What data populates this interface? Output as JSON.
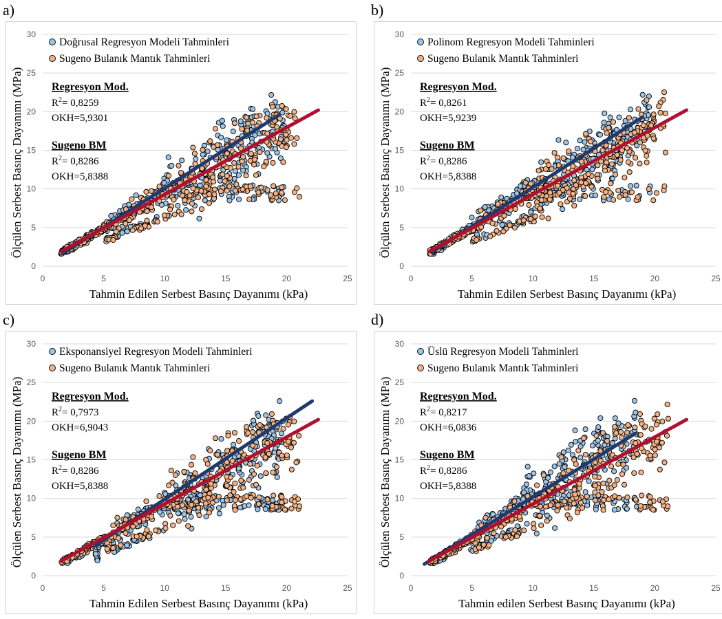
{
  "colors": {
    "regression_points": "#9dc3e6",
    "sugeno_points": "#f4b183",
    "regression_line": "#1f3a6e",
    "sugeno_line": "#b0102f",
    "gridline": "#d9d9d9"
  },
  "chart_data": [
    {
      "panel_label": "a)",
      "type": "scatter",
      "xlabel": "Tahmin Edilen Serbest Basınç Dayanımı (kPa)",
      "ylabel": "Ölçülen Serbest Basınç Dayanımı (MPa)",
      "xlim": [
        0,
        25
      ],
      "ylim": [
        0,
        30
      ],
      "xticks": [
        "0",
        "5",
        "10",
        "15",
        "20",
        "25"
      ],
      "yticks": [
        "0",
        "5",
        "10",
        "15",
        "20",
        "25",
        "30"
      ],
      "grid": "horizontal",
      "legend_position": "top-left",
      "series": [
        {
          "name": "Doğrusal Regresyon Modeli Tahminleri",
          "color": "#9dc3e6",
          "fit_line": {
            "x": [
              1.7,
              19.4
            ],
            "y": [
              1.7,
              19.6
            ],
            "color": "#1f3a6e"
          }
        },
        {
          "name": "Sugeno Bulanık Mantık Tahminleri",
          "color": "#f4b183",
          "fit_line": {
            "x": [
              1.5,
              22.6
            ],
            "y": [
              1.9,
              20.2
            ],
            "color": "#b0102f"
          }
        }
      ],
      "annotations": {
        "reg_title": "Regresyon Mod.",
        "reg_r2_prefix": "R",
        "reg_r2_sup": "2",
        "reg_r2_value": "= 0,8259",
        "reg_okh": "OKH=5,9301",
        "bm_title": "Sugeno BM",
        "bm_r2_prefix": "R",
        "bm_r2_sup": "2",
        "bm_r2_value": "= 0,8286",
        "bm_okh": "OKH=5,8388"
      },
      "reg_shape": "linear"
    },
    {
      "panel_label": "b)",
      "type": "scatter",
      "xlabel": "Tahmin Edilen Serbest Basınç Dayanımı (kPa)",
      "ylabel": "Ölçülen Serbest Basınç Dayanımı (MPa)",
      "xlim": [
        0,
        25
      ],
      "ylim": [
        0,
        30
      ],
      "xticks": [
        "0",
        "5",
        "10",
        "15",
        "20",
        "25"
      ],
      "yticks": [
        "0",
        "5",
        "10",
        "15",
        "20",
        "25",
        "30"
      ],
      "grid": "horizontal",
      "legend_position": "top-left",
      "series": [
        {
          "name": "Polinom Regresyon Modeli Tahminleri",
          "color": "#9dc3e6",
          "fit_line": {
            "x": [
              1.7,
              19.0
            ],
            "y": [
              1.8,
              19.3
            ],
            "color": "#1f3a6e"
          }
        },
        {
          "name": "Sugeno Bulanık Mantık Tahminleri",
          "color": "#f4b183",
          "fit_line": {
            "x": [
              1.5,
              22.6
            ],
            "y": [
              1.9,
              20.2
            ],
            "color": "#b0102f"
          }
        }
      ],
      "annotations": {
        "reg_title": "Regresyon Mod.",
        "reg_r2_prefix": "R",
        "reg_r2_sup": "2",
        "reg_r2_value": "= 0,8261",
        "reg_okh": "OKH=5,9239",
        "bm_title": "Sugeno BM",
        "bm_r2_prefix": "R",
        "bm_r2_sup": "2",
        "bm_r2_value": "= 0,8286",
        "bm_okh": "OKH=5,8388"
      },
      "reg_shape": "polynomial"
    },
    {
      "panel_label": "c)",
      "type": "scatter",
      "xlabel": "Tahmin Edilen Serbest Basınç Dayanımı (kPa)",
      "ylabel": "Ölçülen Serbest Basınç Dayanımı (MPa)",
      "xlim": [
        0,
        25
      ],
      "ylim": [
        0,
        30
      ],
      "xticks": [
        "0",
        "5",
        "10",
        "15",
        "20",
        "25"
      ],
      "yticks": [
        "0",
        "5",
        "10",
        "15",
        "20",
        "25",
        "30"
      ],
      "grid": "horizontal",
      "legend_position": "top-left",
      "series": [
        {
          "name": "Eksponansiyel Regresyon Modeli Tahminleri",
          "color": "#9dc3e6",
          "fit_line": {
            "x": [
              4.3,
              22.1
            ],
            "y": [
              3.9,
              22.6
            ],
            "color": "#1f3a6e"
          }
        },
        {
          "name": "Sugeno Bulanık Mantık Tahminleri",
          "color": "#f4b183",
          "fit_line": {
            "x": [
              1.5,
              22.6
            ],
            "y": [
              1.9,
              20.2
            ],
            "color": "#b0102f"
          }
        }
      ],
      "annotations": {
        "reg_title": "Regresyon Mod.",
        "reg_r2_prefix": "R",
        "reg_r2_sup": "2",
        "reg_r2_value": "= 0,7973",
        "reg_okh": "OKH=6,9043",
        "bm_title": "Sugeno BM",
        "bm_r2_prefix": "R",
        "bm_r2_sup": "2",
        "bm_r2_value": "= 0,8286",
        "bm_okh": "OKH=5,8388"
      },
      "reg_shape": "exponential"
    },
    {
      "panel_label": "d)",
      "type": "scatter",
      "xlabel": "Tahmin edilen Serbest Basınç Dayanımı (kPa)",
      "ylabel": "Ölçülen Serbest Basınç Dayanımı (MPa)",
      "xlim": [
        0,
        25
      ],
      "ylim": [
        0,
        30
      ],
      "xticks": [
        "0",
        "5",
        "10",
        "15",
        "20",
        "25"
      ],
      "yticks": [
        "0",
        "5",
        "10",
        "15",
        "20",
        "25",
        "30"
      ],
      "grid": "horizontal",
      "legend_position": "top-left",
      "series": [
        {
          "name": "Üslü Regresyon Modeli Tahminleri",
          "color": "#9dc3e6",
          "fit_line": {
            "x": [
              1.1,
              18.4
            ],
            "y": [
              1.5,
              18.4
            ],
            "color": "#1f3a6e"
          }
        },
        {
          "name": "Sugeno Bulanık Mantık Tahminleri",
          "color": "#f4b183",
          "fit_line": {
            "x": [
              1.5,
              22.6
            ],
            "y": [
              1.9,
              20.2
            ],
            "color": "#b0102f"
          }
        }
      ],
      "annotations": {
        "reg_title": "Regresyon Mod.",
        "reg_r2_prefix": "R",
        "reg_r2_sup": "2",
        "reg_r2_value": "= 0,8217",
        "reg_okh": "OKH=6,0836",
        "bm_title": "Sugeno BM",
        "bm_r2_prefix": "R",
        "bm_r2_sup": "2",
        "bm_r2_value": "= 0,8286",
        "bm_okh": "OKH=5,8388"
      },
      "reg_shape": "power"
    }
  ]
}
